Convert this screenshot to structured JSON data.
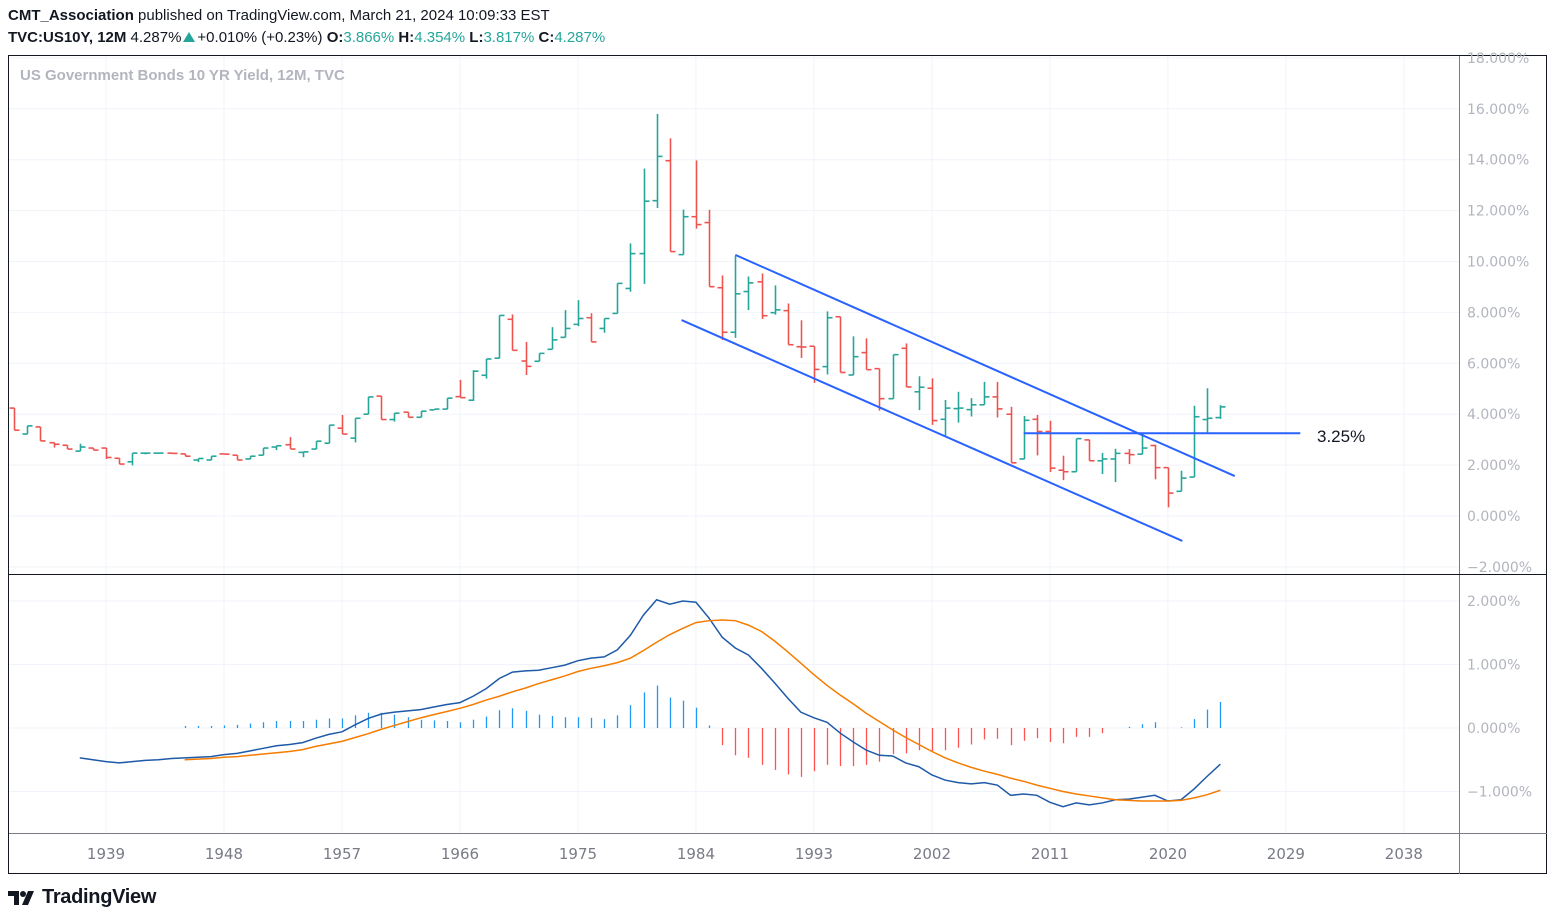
{
  "header": {
    "author": "CMT_Association",
    "published": "published on TradingView.com, March 21, 2024 10:09:33 EST",
    "symbol": "TVC:US10Y, 12M",
    "last": "4.287%",
    "change": "+0.010% (+0.23%)",
    "o_label": "O:",
    "o_value": "3.866%",
    "h_label": "H:",
    "h_value": "4.354%",
    "l_label": "L:",
    "l_value": "3.817%",
    "c_label": "C:",
    "c_value": "4.287%"
  },
  "pane_title": "US Government Bonds 10 YR Yield, 12M, TVC",
  "level_label": "3.25%",
  "footer": {
    "brand": "TradingView"
  },
  "colors": {
    "up": "#26a69a",
    "down": "#ef5350",
    "trendline": "#2962ff",
    "macd": "#1e5aa8",
    "signal": "#f57c00",
    "hist_pos": "#2196f3",
    "hist_neg": "#ff5252"
  },
  "chart_data": [
    {
      "type": "ohlc",
      "title": "US Government Bonds 10 YR Yield, 12M, TVC",
      "y_ticks": [
        "18.000%",
        "16.000%",
        "14.000%",
        "12.000%",
        "10.000%",
        "8.000%",
        "6.000%",
        "4.000%",
        "2.000%",
        "0.000%",
        "−2.000%"
      ],
      "y_tick_values": [
        18,
        16,
        14,
        12,
        10,
        8,
        6,
        4,
        2,
        0,
        -2
      ],
      "x_ticks": [
        "1939",
        "1948",
        "1957",
        "1966",
        "1975",
        "1984",
        "1993",
        "2002",
        "2011",
        "2020",
        "2029",
        "2038"
      ],
      "grid": true,
      "columns": [
        "year",
        "open",
        "high",
        "low",
        "close"
      ],
      "bars": [
        [
          1932,
          4.24,
          4.24,
          3.37,
          3.37
        ],
        [
          1933,
          3.22,
          3.54,
          3.22,
          3.54
        ],
        [
          1934,
          3.5,
          3.5,
          2.95,
          2.95
        ],
        [
          1935,
          2.88,
          2.88,
          2.69,
          2.82
        ],
        [
          1936,
          2.78,
          2.78,
          2.63,
          2.63
        ],
        [
          1937,
          2.55,
          2.84,
          2.55,
          2.71
        ],
        [
          1938,
          2.67,
          2.67,
          2.59,
          2.59
        ],
        [
          1939,
          2.67,
          2.67,
          2.24,
          2.3
        ],
        [
          1940,
          2.27,
          2.27,
          2.04,
          2.04
        ],
        [
          1941,
          2.13,
          2.47,
          1.99,
          2.47
        ],
        [
          1942,
          2.47,
          2.47,
          2.42,
          2.47
        ],
        [
          1943,
          2.47,
          2.47,
          2.47,
          2.47
        ],
        [
          1944,
          2.47,
          2.47,
          2.46,
          2.46
        ],
        [
          1945,
          2.44,
          2.44,
          2.35,
          2.35
        ],
        [
          1946,
          2.2,
          2.26,
          2.12,
          2.26
        ],
        [
          1947,
          2.2,
          2.35,
          2.2,
          2.35
        ],
        [
          1948,
          2.44,
          2.44,
          2.43,
          2.43
        ],
        [
          1949,
          2.39,
          2.39,
          2.2,
          2.2
        ],
        [
          1950,
          2.24,
          2.35,
          2.24,
          2.35
        ],
        [
          1951,
          2.39,
          2.67,
          2.39,
          2.67
        ],
        [
          1952,
          2.71,
          2.76,
          2.59,
          2.76
        ],
        [
          1953,
          2.8,
          3.1,
          2.63,
          2.63
        ],
        [
          1954,
          2.5,
          2.52,
          2.31,
          2.52
        ],
        [
          1955,
          2.63,
          2.94,
          2.63,
          2.94
        ],
        [
          1956,
          2.86,
          3.57,
          2.86,
          3.57
        ],
        [
          1957,
          3.45,
          3.97,
          3.22,
          3.22
        ],
        [
          1958,
          3.06,
          3.84,
          2.89,
          3.84
        ],
        [
          1959,
          4.0,
          4.68,
          4.0,
          4.68
        ],
        [
          1960,
          4.71,
          4.71,
          3.79,
          3.79
        ],
        [
          1961,
          3.79,
          4.04,
          3.71,
          4.04
        ],
        [
          1962,
          4.08,
          4.08,
          3.88,
          3.88
        ],
        [
          1963,
          3.88,
          4.12,
          3.88,
          4.12
        ],
        [
          1964,
          4.17,
          4.2,
          4.17,
          4.2
        ],
        [
          1965,
          4.2,
          4.63,
          4.2,
          4.63
        ],
        [
          1966,
          4.69,
          5.35,
          4.65,
          4.65
        ],
        [
          1967,
          4.55,
          5.73,
          4.52,
          5.69
        ],
        [
          1968,
          5.53,
          6.17,
          5.4,
          6.17
        ],
        [
          1969,
          6.2,
          7.88,
          6.2,
          7.88
        ],
        [
          1970,
          7.73,
          7.92,
          6.51,
          6.51
        ],
        [
          1971,
          6.09,
          6.84,
          5.54,
          5.88
        ],
        [
          1972,
          6.08,
          6.39,
          6.08,
          6.39
        ],
        [
          1973,
          6.55,
          7.42,
          6.55,
          6.92
        ],
        [
          1974,
          7.02,
          8.09,
          7.02,
          7.37
        ],
        [
          1975,
          7.53,
          8.48,
          7.46,
          7.76
        ],
        [
          1976,
          7.79,
          7.97,
          6.84,
          6.84
        ],
        [
          1977,
          7.37,
          7.76,
          7.2,
          7.76
        ],
        [
          1978,
          7.96,
          9.14,
          7.96,
          9.14
        ],
        [
          1979,
          8.94,
          10.71,
          8.81,
          10.31
        ],
        [
          1980,
          10.31,
          13.65,
          9.12,
          12.37
        ],
        [
          1981,
          12.39,
          15.8,
          12.1,
          14.13
        ],
        [
          1982,
          13.96,
          14.84,
          10.39,
          10.39
        ],
        [
          1983,
          10.27,
          12.04,
          10.27,
          11.76
        ],
        [
          1984,
          11.76,
          13.97,
          11.29,
          11.45
        ],
        [
          1985,
          11.53,
          12.03,
          9.01,
          9.01
        ],
        [
          1986,
          8.97,
          9.45,
          6.92,
          7.22
        ],
        [
          1987,
          7.22,
          10.22,
          7.0,
          8.73
        ],
        [
          1988,
          8.82,
          9.41,
          8.09,
          9.16
        ],
        [
          1989,
          9.2,
          9.53,
          7.74,
          7.87
        ],
        [
          1990,
          7.99,
          9.06,
          7.91,
          8.1
        ],
        [
          1991,
          8.07,
          8.35,
          6.73,
          6.73
        ],
        [
          1992,
          6.65,
          7.69,
          6.21,
          6.64
        ],
        [
          1993,
          6.67,
          6.67,
          5.23,
          5.76
        ],
        [
          1994,
          5.87,
          8.04,
          5.56,
          7.79
        ],
        [
          1995,
          7.83,
          7.83,
          5.64,
          5.64
        ],
        [
          1996,
          5.54,
          7.06,
          5.54,
          6.26
        ],
        [
          1997,
          6.42,
          6.98,
          5.75,
          5.75
        ],
        [
          1998,
          5.79,
          5.79,
          4.14,
          4.61
        ],
        [
          1999,
          4.61,
          6.34,
          4.61,
          6.34
        ],
        [
          2000,
          6.59,
          6.78,
          5.07,
          5.07
        ],
        [
          2001,
          4.88,
          5.49,
          4.16,
          5.06
        ],
        [
          2002,
          5.02,
          5.41,
          3.58,
          3.75
        ],
        [
          2003,
          3.8,
          4.56,
          3.14,
          4.24
        ],
        [
          2004,
          4.22,
          4.88,
          3.67,
          4.24
        ],
        [
          2005,
          4.18,
          4.63,
          3.91,
          4.37
        ],
        [
          2006,
          4.37,
          5.27,
          4.37,
          4.68
        ],
        [
          2007,
          4.68,
          5.27,
          3.87,
          4.21
        ],
        [
          2008,
          4.0,
          4.29,
          2.09,
          2.09
        ],
        [
          2009,
          2.24,
          3.93,
          2.24,
          3.76
        ],
        [
          2010,
          3.8,
          3.97,
          2.38,
          3.32
        ],
        [
          2011,
          3.32,
          3.74,
          1.73,
          1.88
        ],
        [
          2012,
          1.8,
          2.37,
          1.41,
          1.74
        ],
        [
          2013,
          1.74,
          3.04,
          1.74,
          3.04
        ],
        [
          2014,
          2.99,
          2.99,
          2.17,
          2.17
        ],
        [
          2015,
          2.17,
          2.48,
          1.65,
          2.24
        ],
        [
          2016,
          2.24,
          2.64,
          1.33,
          2.46
        ],
        [
          2017,
          2.46,
          2.63,
          2.04,
          2.41
        ],
        [
          2018,
          2.43,
          3.24,
          2.43,
          2.67
        ],
        [
          2019,
          2.77,
          2.8,
          1.44,
          1.9
        ],
        [
          2020,
          1.9,
          1.9,
          0.34,
          0.9
        ],
        [
          2021,
          0.97,
          1.78,
          0.97,
          1.49
        ],
        [
          2022,
          1.53,
          4.33,
          1.53,
          3.9
        ],
        [
          2023,
          3.79,
          5.02,
          3.25,
          3.84
        ],
        [
          2024,
          3.866,
          4.354,
          3.817,
          4.287
        ]
      ],
      "drawings": [
        {
          "type": "trendline",
          "from": [
            1987.0,
            10.26
          ],
          "to": [
            2025.1,
            1.57
          ]
        },
        {
          "type": "trendline",
          "from": [
            1982.9,
            7.7
          ],
          "to": [
            2021.1,
            -0.98
          ]
        },
        {
          "type": "horizontal",
          "from": [
            2009.0,
            3.25
          ],
          "to": [
            2030.1,
            3.25
          ],
          "label": "3.25%"
        }
      ]
    },
    {
      "type": "line+bar",
      "y_ticks": [
        "2.000%",
        "1.000%",
        "0.000%",
        "−1.000%"
      ],
      "y_tick_values": [
        2,
        1,
        0,
        -1
      ],
      "macd_start": 1937,
      "macd": [
        -0.47,
        -0.5,
        -0.53,
        -0.55,
        -0.53,
        -0.51,
        -0.5,
        -0.48,
        -0.47,
        -0.46,
        -0.45,
        -0.42,
        -0.4,
        -0.36,
        -0.32,
        -0.28,
        -0.26,
        -0.23,
        -0.16,
        -0.1,
        -0.06,
        0.05,
        0.15,
        0.22,
        0.25,
        0.27,
        0.29,
        0.33,
        0.37,
        0.4,
        0.5,
        0.62,
        0.78,
        0.88,
        0.9,
        0.91,
        0.95,
        0.99,
        1.06,
        1.1,
        1.12,
        1.23,
        1.46,
        1.78,
        2.02,
        1.95,
        2.0,
        1.98,
        1.73,
        1.43,
        1.26,
        1.15,
        0.94,
        0.71,
        0.47,
        0.25,
        0.16,
        0.09,
        -0.08,
        -0.22,
        -0.35,
        -0.43,
        -0.44,
        -0.55,
        -0.61,
        -0.74,
        -0.82,
        -0.86,
        -0.88,
        -0.86,
        -0.9,
        -1.06,
        -1.04,
        -1.06,
        -1.17,
        -1.24,
        -1.18,
        -1.21,
        -1.18,
        -1.13,
        -1.12,
        -1.09,
        -1.06,
        -1.15,
        -1.13,
        -0.96,
        -0.76,
        -0.57
      ],
      "signal_start": 1945,
      "signal": [
        -0.5,
        -0.49,
        -0.48,
        -0.46,
        -0.45,
        -0.43,
        -0.41,
        -0.39,
        -0.37,
        -0.34,
        -0.29,
        -0.25,
        -0.21,
        -0.15,
        -0.09,
        -0.02,
        0.04,
        0.1,
        0.16,
        0.21,
        0.26,
        0.31,
        0.37,
        0.44,
        0.5,
        0.57,
        0.63,
        0.7,
        0.76,
        0.82,
        0.89,
        0.94,
        0.98,
        1.03,
        1.1,
        1.22,
        1.35,
        1.47,
        1.57,
        1.66,
        1.69,
        1.7,
        1.69,
        1.62,
        1.52,
        1.37,
        1.2,
        1.02,
        0.84,
        0.67,
        0.52,
        0.38,
        0.23,
        0.1,
        -0.03,
        -0.15,
        -0.26,
        -0.37,
        -0.47,
        -0.55,
        -0.62,
        -0.68,
        -0.73,
        -0.79,
        -0.84,
        -0.9,
        -0.95,
        -1.0,
        -1.04,
        -1.07,
        -1.1,
        -1.13,
        -1.14,
        -1.15,
        -1.15,
        -1.15,
        -1.14,
        -1.1,
        -1.05,
        -0.98
      ],
      "histogram": "macd minus signal"
    }
  ]
}
